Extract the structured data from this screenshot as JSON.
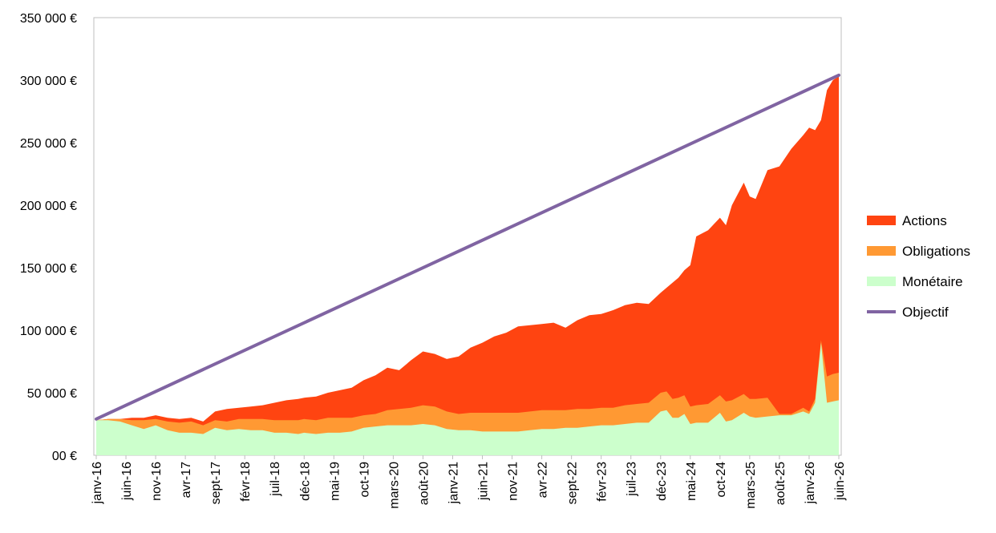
{
  "chart_data": {
    "type": "area",
    "x_start": "2016-01",
    "x_end": "2026-06",
    "x_ticks": [
      "janv-16",
      "juin-16",
      "nov-16",
      "avr-17",
      "sept-17",
      "févr-18",
      "juil-18",
      "déc-18",
      "mai-19",
      "oct-19",
      "mars-20",
      "août-20",
      "janv-21",
      "juin-21",
      "nov-21",
      "avr-22",
      "sept-22",
      "févr-23",
      "juil-23",
      "déc-23",
      "mai-24",
      "oct-24",
      "mars-25",
      "août-25",
      "janv-26",
      "juin-26"
    ],
    "y_ticks": [
      "00 €",
      "50 000 €",
      "100 000 €",
      "150 000 €",
      "200 000 €",
      "250 000 €",
      "300 000 €",
      "350 000 €"
    ],
    "ylim": [
      0,
      350000
    ],
    "grid": "vertical-edges",
    "legend_position": "right",
    "stacked": true,
    "series": [
      {
        "name": "Monétaire",
        "color": "#ccffcc",
        "points": [
          [
            "2016-01",
            28000
          ],
          [
            "2016-03",
            28000
          ],
          [
            "2016-05",
            27000
          ],
          [
            "2016-07",
            24000
          ],
          [
            "2016-09",
            21000
          ],
          [
            "2016-11",
            24000
          ],
          [
            "2017-01",
            20000
          ],
          [
            "2017-03",
            18000
          ],
          [
            "2017-05",
            18000
          ],
          [
            "2017-07",
            17000
          ],
          [
            "2017-09",
            22000
          ],
          [
            "2017-11",
            20000
          ],
          [
            "2018-01",
            21000
          ],
          [
            "2018-03",
            20000
          ],
          [
            "2018-05",
            20000
          ],
          [
            "2018-07",
            18000
          ],
          [
            "2018-09",
            18000
          ],
          [
            "2018-11",
            17000
          ],
          [
            "2018-12",
            18000
          ],
          [
            "2019-02",
            17000
          ],
          [
            "2019-04",
            18000
          ],
          [
            "2019-06",
            18000
          ],
          [
            "2019-08",
            19000
          ],
          [
            "2019-10",
            22000
          ],
          [
            "2019-12",
            23000
          ],
          [
            "2020-02",
            24000
          ],
          [
            "2020-04",
            24000
          ],
          [
            "2020-06",
            24000
          ],
          [
            "2020-08",
            25000
          ],
          [
            "2020-10",
            24000
          ],
          [
            "2020-12",
            21000
          ],
          [
            "2021-02",
            20000
          ],
          [
            "2021-04",
            20000
          ],
          [
            "2021-06",
            19000
          ],
          [
            "2021-08",
            19000
          ],
          [
            "2021-10",
            19000
          ],
          [
            "2021-12",
            19000
          ],
          [
            "2022-02",
            20000
          ],
          [
            "2022-04",
            21000
          ],
          [
            "2022-06",
            21000
          ],
          [
            "2022-08",
            22000
          ],
          [
            "2022-10",
            22000
          ],
          [
            "2022-12",
            23000
          ],
          [
            "2023-02",
            24000
          ],
          [
            "2023-04",
            24000
          ],
          [
            "2023-06",
            25000
          ],
          [
            "2023-08",
            26000
          ],
          [
            "2023-10",
            26000
          ],
          [
            "2023-12",
            35000
          ],
          [
            "2024-01",
            36000
          ],
          [
            "2024-02",
            30000
          ],
          [
            "2024-03",
            30000
          ],
          [
            "2024-04",
            33000
          ],
          [
            "2024-05",
            25000
          ],
          [
            "2024-06",
            26000
          ],
          [
            "2024-08",
            26000
          ],
          [
            "2024-10",
            34000
          ],
          [
            "2024-11",
            27000
          ],
          [
            "2024-12",
            28000
          ],
          [
            "2025-02",
            34000
          ],
          [
            "2025-03",
            31000
          ],
          [
            "2025-04",
            30000
          ],
          [
            "2025-06",
            31000
          ],
          [
            "2025-08",
            32000
          ],
          [
            "2025-10",
            32000
          ],
          [
            "2025-12",
            35000
          ],
          [
            "2026-01",
            33000
          ],
          [
            "2026-02",
            42000
          ],
          [
            "2026-03",
            90000
          ],
          [
            "2026-04",
            42000
          ],
          [
            "2026-05",
            43000
          ],
          [
            "2026-06",
            44000
          ]
        ]
      },
      {
        "name": "Obligations",
        "color": "#ff9933",
        "points": [
          [
            "2016-01",
            28000
          ],
          [
            "2016-03",
            29000
          ],
          [
            "2016-05",
            29000
          ],
          [
            "2016-07",
            28000
          ],
          [
            "2016-09",
            28000
          ],
          [
            "2016-11",
            29000
          ],
          [
            "2017-01",
            27000
          ],
          [
            "2017-03",
            26000
          ],
          [
            "2017-05",
            27000
          ],
          [
            "2017-07",
            24000
          ],
          [
            "2017-09",
            28000
          ],
          [
            "2017-11",
            27000
          ],
          [
            "2018-01",
            29000
          ],
          [
            "2018-03",
            29000
          ],
          [
            "2018-05",
            29000
          ],
          [
            "2018-07",
            28000
          ],
          [
            "2018-09",
            28000
          ],
          [
            "2018-11",
            28000
          ],
          [
            "2018-12",
            29000
          ],
          [
            "2019-02",
            28000
          ],
          [
            "2019-04",
            30000
          ],
          [
            "2019-06",
            30000
          ],
          [
            "2019-08",
            30000
          ],
          [
            "2019-10",
            32000
          ],
          [
            "2019-12",
            33000
          ],
          [
            "2020-02",
            36000
          ],
          [
            "2020-04",
            37000
          ],
          [
            "2020-06",
            38000
          ],
          [
            "2020-08",
            40000
          ],
          [
            "2020-10",
            39000
          ],
          [
            "2020-12",
            35000
          ],
          [
            "2021-02",
            33000
          ],
          [
            "2021-04",
            34000
          ],
          [
            "2021-06",
            34000
          ],
          [
            "2021-08",
            34000
          ],
          [
            "2021-10",
            34000
          ],
          [
            "2021-12",
            34000
          ],
          [
            "2022-02",
            35000
          ],
          [
            "2022-04",
            36000
          ],
          [
            "2022-06",
            36000
          ],
          [
            "2022-08",
            36000
          ],
          [
            "2022-10",
            37000
          ],
          [
            "2022-12",
            37000
          ],
          [
            "2023-02",
            38000
          ],
          [
            "2023-04",
            38000
          ],
          [
            "2023-06",
            40000
          ],
          [
            "2023-08",
            41000
          ],
          [
            "2023-10",
            42000
          ],
          [
            "2023-12",
            50000
          ],
          [
            "2024-01",
            51000
          ],
          [
            "2024-02",
            45000
          ],
          [
            "2024-03",
            46000
          ],
          [
            "2024-04",
            48000
          ],
          [
            "2024-05",
            39000
          ],
          [
            "2024-06",
            40000
          ],
          [
            "2024-08",
            41000
          ],
          [
            "2024-10",
            48000
          ],
          [
            "2024-11",
            43000
          ],
          [
            "2024-12",
            44000
          ],
          [
            "2025-02",
            49000
          ],
          [
            "2025-03",
            45000
          ],
          [
            "2025-04",
            45000
          ],
          [
            "2025-06",
            46000
          ],
          [
            "2025-08",
            33000
          ],
          [
            "2025-10",
            33000
          ],
          [
            "2025-12",
            38000
          ],
          [
            "2026-01",
            35000
          ],
          [
            "2026-02",
            45000
          ],
          [
            "2026-03",
            92000
          ],
          [
            "2026-04",
            63000
          ],
          [
            "2026-05",
            65000
          ],
          [
            "2026-06",
            66000
          ]
        ]
      },
      {
        "name": "Actions",
        "color": "#ff4411",
        "points": [
          [
            "2016-01",
            28000
          ],
          [
            "2016-03",
            29000
          ],
          [
            "2016-05",
            29000
          ],
          [
            "2016-07",
            30000
          ],
          [
            "2016-09",
            30000
          ],
          [
            "2016-11",
            32000
          ],
          [
            "2017-01",
            30000
          ],
          [
            "2017-03",
            29000
          ],
          [
            "2017-05",
            30000
          ],
          [
            "2017-07",
            27000
          ],
          [
            "2017-09",
            35000
          ],
          [
            "2017-11",
            37000
          ],
          [
            "2018-01",
            38000
          ],
          [
            "2018-03",
            39000
          ],
          [
            "2018-05",
            40000
          ],
          [
            "2018-07",
            42000
          ],
          [
            "2018-09",
            44000
          ],
          [
            "2018-11",
            45000
          ],
          [
            "2018-12",
            46000
          ],
          [
            "2019-02",
            47000
          ],
          [
            "2019-04",
            50000
          ],
          [
            "2019-06",
            52000
          ],
          [
            "2019-08",
            54000
          ],
          [
            "2019-10",
            60000
          ],
          [
            "2019-12",
            64000
          ],
          [
            "2020-02",
            70000
          ],
          [
            "2020-04",
            68000
          ],
          [
            "2020-06",
            76000
          ],
          [
            "2020-08",
            83000
          ],
          [
            "2020-10",
            81000
          ],
          [
            "2020-12",
            77000
          ],
          [
            "2021-02",
            79000
          ],
          [
            "2021-04",
            86000
          ],
          [
            "2021-06",
            90000
          ],
          [
            "2021-08",
            95000
          ],
          [
            "2021-10",
            98000
          ],
          [
            "2021-12",
            103000
          ],
          [
            "2022-02",
            104000
          ],
          [
            "2022-04",
            105000
          ],
          [
            "2022-06",
            106000
          ],
          [
            "2022-08",
            102000
          ],
          [
            "2022-10",
            108000
          ],
          [
            "2022-12",
            112000
          ],
          [
            "2023-02",
            113000
          ],
          [
            "2023-04",
            116000
          ],
          [
            "2023-06",
            120000
          ],
          [
            "2023-08",
            122000
          ],
          [
            "2023-10",
            121000
          ],
          [
            "2023-12",
            130000
          ],
          [
            "2024-01",
            134000
          ],
          [
            "2024-02",
            138000
          ],
          [
            "2024-03",
            142000
          ],
          [
            "2024-04",
            148000
          ],
          [
            "2024-05",
            152000
          ],
          [
            "2024-06",
            175000
          ],
          [
            "2024-08",
            180000
          ],
          [
            "2024-10",
            190000
          ],
          [
            "2024-11",
            184000
          ],
          [
            "2024-12",
            200000
          ],
          [
            "2025-02",
            218000
          ],
          [
            "2025-03",
            207000
          ],
          [
            "2025-04",
            205000
          ],
          [
            "2025-06",
            228000
          ],
          [
            "2025-08",
            231000
          ],
          [
            "2025-10",
            245000
          ],
          [
            "2025-12",
            256000
          ],
          [
            "2026-01",
            262000
          ],
          [
            "2026-02",
            260000
          ],
          [
            "2026-03",
            268000
          ],
          [
            "2026-04",
            292000
          ],
          [
            "2026-05",
            300000
          ],
          [
            "2026-06",
            303000
          ]
        ]
      },
      {
        "name": "Objectif",
        "color": "#8064a2",
        "type": "line",
        "points": [
          [
            "2016-01",
            29000
          ],
          [
            "2026-06",
            304000
          ]
        ]
      }
    ]
  }
}
